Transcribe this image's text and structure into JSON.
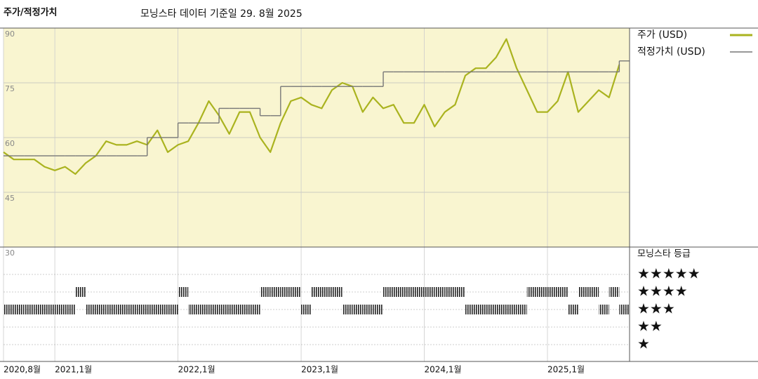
{
  "chart_data": {
    "type": "line",
    "title": "주가/적정가치",
    "subtitle": "모닝스타 데이터 기준일 29. 8월 2025",
    "x": [
      "2020-08",
      "2020-09",
      "2020-10",
      "2020-11",
      "2020-12",
      "2021-01",
      "2021-02",
      "2021-03",
      "2021-04",
      "2021-05",
      "2021-06",
      "2021-07",
      "2021-08",
      "2021-09",
      "2021-10",
      "2021-11",
      "2021-12",
      "2022-01",
      "2022-02",
      "2022-03",
      "2022-04",
      "2022-05",
      "2022-06",
      "2022-07",
      "2022-08",
      "2022-09",
      "2022-10",
      "2022-11",
      "2022-12",
      "2023-01",
      "2023-02",
      "2023-03",
      "2023-04",
      "2023-05",
      "2023-06",
      "2023-07",
      "2023-08",
      "2023-09",
      "2023-10",
      "2023-11",
      "2023-12",
      "2024-01",
      "2024-02",
      "2024-03",
      "2024-04",
      "2024-05",
      "2024-06",
      "2024-07",
      "2024-08",
      "2024-09",
      "2024-10",
      "2024-11",
      "2024-12",
      "2025-01",
      "2025-02",
      "2025-03",
      "2025-04",
      "2025-05",
      "2025-06",
      "2025-07",
      "2025-08"
    ],
    "xlim": [
      "2020-08",
      "2025-09"
    ],
    "xticks": [
      {
        "value": "2020-08",
        "label": "2020,8월"
      },
      {
        "value": "2021-01",
        "label": "2021,1월"
      },
      {
        "value": "2022-01",
        "label": "2022,1월"
      },
      {
        "value": "2023-01",
        "label": "2023,1월"
      },
      {
        "value": "2024-01",
        "label": "2024,1월"
      },
      {
        "value": "2025-01",
        "label": "2025,1월"
      }
    ],
    "ylim": [
      30,
      90
    ],
    "yticks": [
      30,
      45,
      60,
      75,
      90
    ],
    "grid": true,
    "series": [
      {
        "name": "주가 (USD)",
        "color": "#aab31f",
        "values": [
          56,
          54,
          54,
          54,
          52,
          51,
          52,
          50,
          53,
          55,
          59,
          58,
          58,
          59,
          58,
          62,
          56,
          58,
          59,
          64,
          70,
          66,
          61,
          67,
          67,
          60,
          56,
          64,
          70,
          71,
          69,
          68,
          73,
          75,
          74,
          67,
          71,
          68,
          69,
          64,
          64,
          69,
          63,
          67,
          69,
          77,
          79,
          79,
          82,
          87,
          79,
          73,
          67,
          67,
          70,
          78,
          67,
          70,
          73,
          71,
          80
        ]
      },
      {
        "name": "적정가치 (USD)",
        "color": "#777777",
        "step": true,
        "values": [
          55,
          55,
          55,
          55,
          55,
          55,
          55,
          55,
          55,
          55,
          55,
          55,
          55,
          55,
          60,
          60,
          60,
          64,
          64,
          64,
          64,
          68,
          68,
          68,
          68,
          66,
          66,
          74,
          74,
          74,
          74,
          74,
          74,
          74,
          74,
          74,
          74,
          78,
          78,
          78,
          78,
          78,
          78,
          78,
          78,
          78,
          78,
          78,
          78,
          78,
          78,
          78,
          78,
          78,
          78,
          78,
          78,
          78,
          78,
          78,
          81
        ]
      }
    ],
    "rating": {
      "title": "모닝스타 등급",
      "levels": [
        5,
        4,
        3,
        2,
        1
      ],
      "level_labels": [
        "★★★★★",
        "★★★★",
        "★★★",
        "★★",
        "★"
      ],
      "values": [
        3,
        3,
        3,
        3,
        3,
        3,
        3,
        4,
        3,
        3,
        3,
        3,
        3,
        3,
        3,
        3,
        3,
        4,
        3,
        3,
        3,
        3,
        3,
        3,
        3,
        4,
        4,
        4,
        4,
        3,
        4,
        4,
        4,
        3,
        3,
        3,
        3,
        4,
        4,
        4,
        4,
        4,
        4,
        4,
        4,
        3,
        3,
        3,
        3,
        3,
        3,
        4,
        4,
        4,
        4,
        3,
        4,
        4,
        3,
        4,
        3
      ]
    }
  }
}
